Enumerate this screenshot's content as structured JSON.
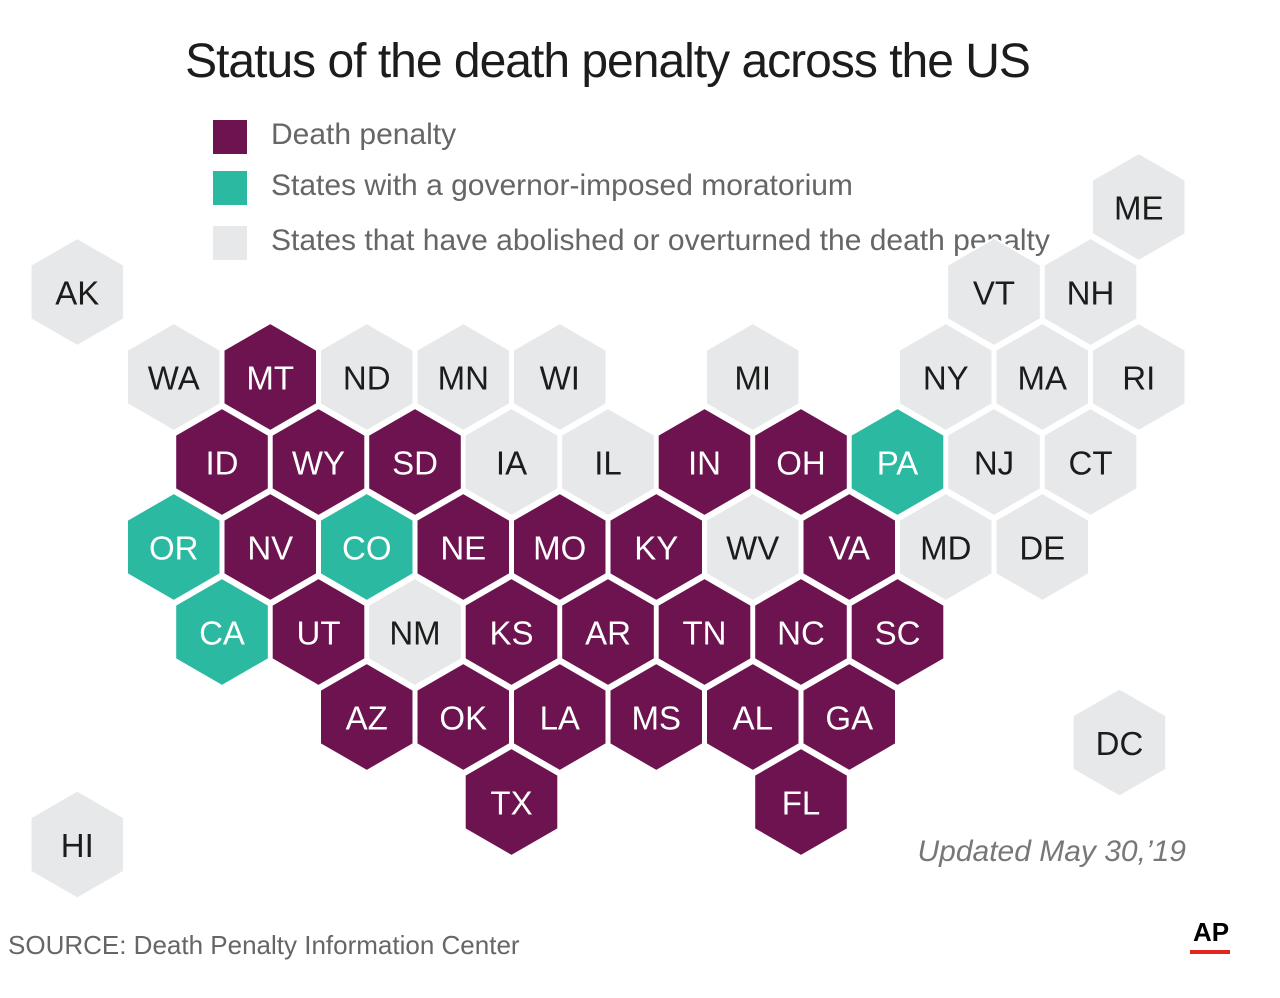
{
  "title": "Status of the death penalty across the US",
  "colors": {
    "death_penalty": "#6d1450",
    "moratorium": "#2bb9a1",
    "abolished": "#e7e8ea",
    "label_dark": "#ffffff",
    "label_light": "#1c1c1c",
    "ap_red": "#e2261c"
  },
  "legend": [
    {
      "status": "death_penalty",
      "label": "Death penalty"
    },
    {
      "status": "moratorium",
      "label": "States with a governor-imposed moratorium"
    },
    {
      "status": "abolished",
      "label": "States that have abolished or overturned  the death penalty"
    }
  ],
  "states": [
    {
      "abbr": "AK",
      "status": "abolished",
      "col": 0.5,
      "row": 0
    },
    {
      "abbr": "WA",
      "status": "abolished",
      "col": 1.5,
      "row": 1
    },
    {
      "abbr": "MT",
      "status": "death_penalty",
      "col": 2.5,
      "row": 1
    },
    {
      "abbr": "ND",
      "status": "abolished",
      "col": 3.5,
      "row": 1
    },
    {
      "abbr": "MN",
      "status": "abolished",
      "col": 4.5,
      "row": 1
    },
    {
      "abbr": "WI",
      "status": "abolished",
      "col": 5.5,
      "row": 1
    },
    {
      "abbr": "MI",
      "status": "abolished",
      "col": 7.5,
      "row": 1
    },
    {
      "abbr": "ID",
      "status": "death_penalty",
      "col": 2,
      "row": 2
    },
    {
      "abbr": "WY",
      "status": "death_penalty",
      "col": 3,
      "row": 2
    },
    {
      "abbr": "SD",
      "status": "death_penalty",
      "col": 4,
      "row": 2
    },
    {
      "abbr": "IA",
      "status": "abolished",
      "col": 5,
      "row": 2
    },
    {
      "abbr": "IL",
      "status": "abolished",
      "col": 6,
      "row": 2
    },
    {
      "abbr": "IN",
      "status": "death_penalty",
      "col": 7,
      "row": 2
    },
    {
      "abbr": "OH",
      "status": "death_penalty",
      "col": 8,
      "row": 2
    },
    {
      "abbr": "PA",
      "status": "moratorium",
      "col": 9,
      "row": 2
    },
    {
      "abbr": "OR",
      "status": "moratorium",
      "col": 1.5,
      "row": 3
    },
    {
      "abbr": "NV",
      "status": "death_penalty",
      "col": 2.5,
      "row": 3
    },
    {
      "abbr": "CO",
      "status": "moratorium",
      "col": 3.5,
      "row": 3
    },
    {
      "abbr": "NE",
      "status": "death_penalty",
      "col": 4.5,
      "row": 3
    },
    {
      "abbr": "MO",
      "status": "death_penalty",
      "col": 5.5,
      "row": 3
    },
    {
      "abbr": "KY",
      "status": "death_penalty",
      "col": 6.5,
      "row": 3
    },
    {
      "abbr": "WV",
      "status": "abolished",
      "col": 7.5,
      "row": 3
    },
    {
      "abbr": "VA",
      "status": "death_penalty",
      "col": 8.5,
      "row": 3
    },
    {
      "abbr": "MD",
      "status": "abolished",
      "col": 9.5,
      "row": 3
    },
    {
      "abbr": "DE",
      "status": "abolished",
      "col": 10.5,
      "row": 3
    },
    {
      "abbr": "CA",
      "status": "moratorium",
      "col": 2,
      "row": 4
    },
    {
      "abbr": "UT",
      "status": "death_penalty",
      "col": 3,
      "row": 4
    },
    {
      "abbr": "NM",
      "status": "abolished",
      "col": 4,
      "row": 4
    },
    {
      "abbr": "KS",
      "status": "death_penalty",
      "col": 5,
      "row": 4
    },
    {
      "abbr": "AR",
      "status": "death_penalty",
      "col": 6,
      "row": 4
    },
    {
      "abbr": "TN",
      "status": "death_penalty",
      "col": 7,
      "row": 4
    },
    {
      "abbr": "NC",
      "status": "death_penalty",
      "col": 8,
      "row": 4
    },
    {
      "abbr": "SC",
      "status": "death_penalty",
      "col": 9,
      "row": 4
    },
    {
      "abbr": "AZ",
      "status": "death_penalty",
      "col": 3.5,
      "row": 5
    },
    {
      "abbr": "OK",
      "status": "death_penalty",
      "col": 4.5,
      "row": 5
    },
    {
      "abbr": "LA",
      "status": "death_penalty",
      "col": 5.5,
      "row": 5
    },
    {
      "abbr": "MS",
      "status": "death_penalty",
      "col": 6.5,
      "row": 5
    },
    {
      "abbr": "AL",
      "status": "death_penalty",
      "col": 7.5,
      "row": 5
    },
    {
      "abbr": "GA",
      "status": "death_penalty",
      "col": 8.5,
      "row": 5
    },
    {
      "abbr": "TX",
      "status": "death_penalty",
      "col": 5,
      "row": 6
    },
    {
      "abbr": "FL",
      "status": "death_penalty",
      "col": 8,
      "row": 6
    },
    {
      "abbr": "HI",
      "status": "abolished",
      "col": 0.5,
      "row": 6.5
    },
    {
      "abbr": "ME",
      "status": "abolished",
      "col": 11.5,
      "row": -1
    },
    {
      "abbr": "VT",
      "status": "abolished",
      "col": 10,
      "row": 0
    },
    {
      "abbr": "NH",
      "status": "abolished",
      "col": 11,
      "row": 0
    },
    {
      "abbr": "NY",
      "status": "abolished",
      "col": 9.5,
      "row": 1
    },
    {
      "abbr": "MA",
      "status": "abolished",
      "col": 10.5,
      "row": 1
    },
    {
      "abbr": "RI",
      "status": "abolished",
      "col": 11.5,
      "row": 1
    },
    {
      "abbr": "NJ",
      "status": "abolished",
      "col": 10,
      "row": 2
    },
    {
      "abbr": "CT",
      "status": "abolished",
      "col": 11,
      "row": 2
    },
    {
      "abbr": "DC",
      "status": "abolished",
      "col": 11.3,
      "row": 5.3
    }
  ],
  "updated": "Updated May 30,’19",
  "source": "SOURCE: Death Penalty Information Center",
  "logo": "AP"
}
